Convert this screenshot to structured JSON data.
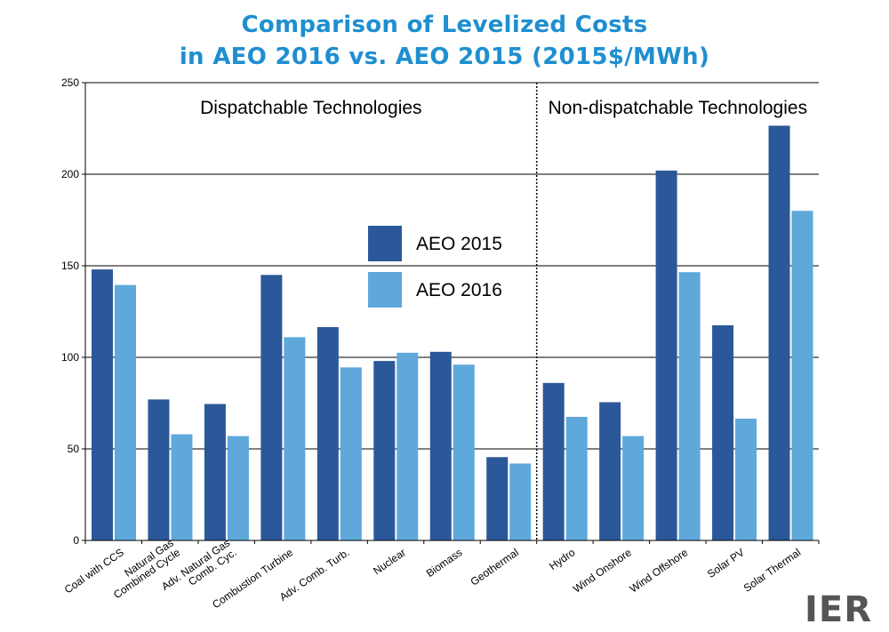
{
  "title_lines": [
    "Comparison of Levelized Costs",
    "in AEO 2016 vs. AEO 2015 (2015$/MWh)"
  ],
  "logo": "IER",
  "colors": {
    "title": "#1e8fd0",
    "aeo2015": "#2b5898",
    "aeo2016": "#5fa8dc",
    "logo": "#555555"
  },
  "chart_data": {
    "type": "bar",
    "title": "Comparison of Levelized Costs in AEO 2016 vs. AEO 2015 (2015$/MWh)",
    "xlabel": "",
    "ylabel": "",
    "ylim": [
      0,
      250
    ],
    "yticks": [
      0,
      50,
      100,
      150,
      200,
      250
    ],
    "grid": true,
    "legend_position": "center",
    "categories": [
      [
        "Coal with CCS"
      ],
      [
        "Natural Gas",
        "Combined Cycle"
      ],
      [
        "Adv. Natural Gas",
        "Comb. Cyc."
      ],
      [
        "Combustion Turbine"
      ],
      [
        "Adv. Comb. Turb."
      ],
      [
        "Nuclear"
      ],
      [
        "Biomass"
      ],
      [
        "Geothermal"
      ],
      [
        "Hydro"
      ],
      [
        "Wind Onshore"
      ],
      [
        "Wind Offshore"
      ],
      [
        "Solar PV"
      ],
      [
        "Solar Thermal"
      ]
    ],
    "series": [
      {
        "name": "AEO 2015",
        "color": "#2b5898",
        "values": [
          148,
          77,
          74.5,
          145,
          116.5,
          98,
          103,
          45.5,
          86,
          75.5,
          202,
          117.5,
          226.5
        ]
      },
      {
        "name": "AEO 2016",
        "color": "#5fa8dc",
        "values": [
          139.5,
          58,
          57,
          111,
          94.5,
          102.5,
          96,
          42,
          67.5,
          57,
          146.5,
          66.5,
          180
        ]
      }
    ],
    "sections": [
      {
        "label": "Dispatchable Technologies",
        "first_index": 0,
        "last_index": 7
      },
      {
        "label": "Non-dispatchable Technologies",
        "first_index": 8,
        "last_index": 12
      }
    ]
  }
}
